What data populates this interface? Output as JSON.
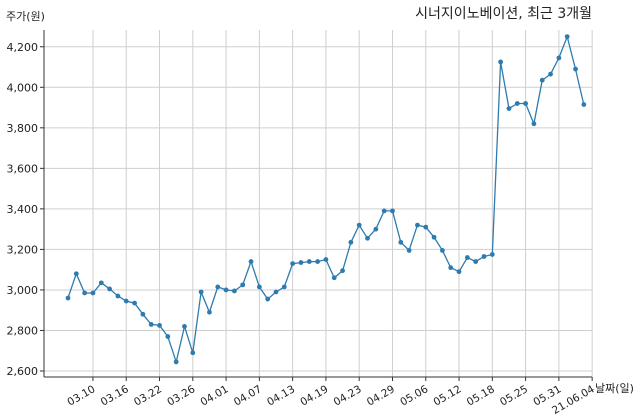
{
  "chart_data": {
    "type": "line",
    "title": "시너지이노베이션, 최근 3개월",
    "ylabel": "주가(원)",
    "xlabel": "날짜(일)",
    "ylim": [
      2600,
      4300
    ],
    "yticks": [
      2600,
      2800,
      3000,
      3200,
      3400,
      3600,
      3800,
      4000,
      4200
    ],
    "ytick_labels": [
      "2,600",
      "2,800",
      "3,000",
      "3,200",
      "3,400",
      "3,600",
      "3,800",
      "4,000",
      "4,200"
    ],
    "xtick_labels": [
      {
        "label": "03.10",
        "index": 3
      },
      {
        "label": "03.16",
        "index": 7
      },
      {
        "label": "03.22",
        "index": 11
      },
      {
        "label": "03.26",
        "index": 15
      },
      {
        "label": "04.01",
        "index": 19
      },
      {
        "label": "04.07",
        "index": 23
      },
      {
        "label": "04.13",
        "index": 27
      },
      {
        "label": "04.19",
        "index": 31
      },
      {
        "label": "04.23",
        "index": 35
      },
      {
        "label": "04.29",
        "index": 39
      },
      {
        "label": "05.06",
        "index": 43
      },
      {
        "label": "05.12",
        "index": 47
      },
      {
        "label": "05.18",
        "index": 51
      },
      {
        "label": "05.25",
        "index": 55
      },
      {
        "label": "05.31",
        "index": 59
      },
      {
        "label": "21.06.04",
        "index": 63
      }
    ],
    "grid": true,
    "color": "#2e7bb0",
    "series": [
      {
        "values": [
          2960,
          3080,
          2985,
          2985,
          3035,
          3005,
          2970,
          2945,
          2935,
          2880,
          2830,
          2825,
          2770,
          2645,
          2820,
          2690,
          2990,
          2890,
          3015,
          3000,
          2995,
          3025,
          3140,
          3015,
          2955,
          2990,
          3015,
          3130,
          3135,
          3140,
          3140,
          3150,
          3060,
          3095,
          3235,
          3320,
          3255,
          3300,
          3390,
          3390,
          3235,
          3195,
          3320,
          3310,
          3260,
          3195,
          3110,
          3090,
          3160,
          3140,
          3165,
          3175,
          4125,
          3895,
          3920,
          3920,
          3820,
          4035,
          4065,
          4145,
          4250,
          4090,
          3915
        ]
      }
    ]
  }
}
